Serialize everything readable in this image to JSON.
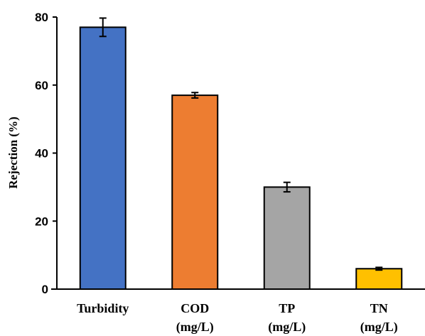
{
  "chart_data": {
    "type": "bar",
    "categories": [
      {
        "lines": [
          "Turbidity"
        ]
      },
      {
        "lines": [
          "COD",
          "(mg/L)"
        ]
      },
      {
        "lines": [
          "TP",
          "(mg/L)"
        ]
      },
      {
        "lines": [
          "TN",
          "(mg/L)"
        ]
      }
    ],
    "values": [
      77,
      57,
      30,
      6
    ],
    "errors": [
      2.7,
      0.8,
      1.4,
      0.4
    ],
    "colors": [
      "#4472C4",
      "#ED7D31",
      "#A5A5A5",
      "#FFC000"
    ],
    "title": "",
    "xlabel": "",
    "ylabel": "Rejection (%)",
    "ylim": [
      0,
      80
    ],
    "yticks": [
      0,
      20,
      40,
      60,
      80
    ],
    "grid": false
  }
}
